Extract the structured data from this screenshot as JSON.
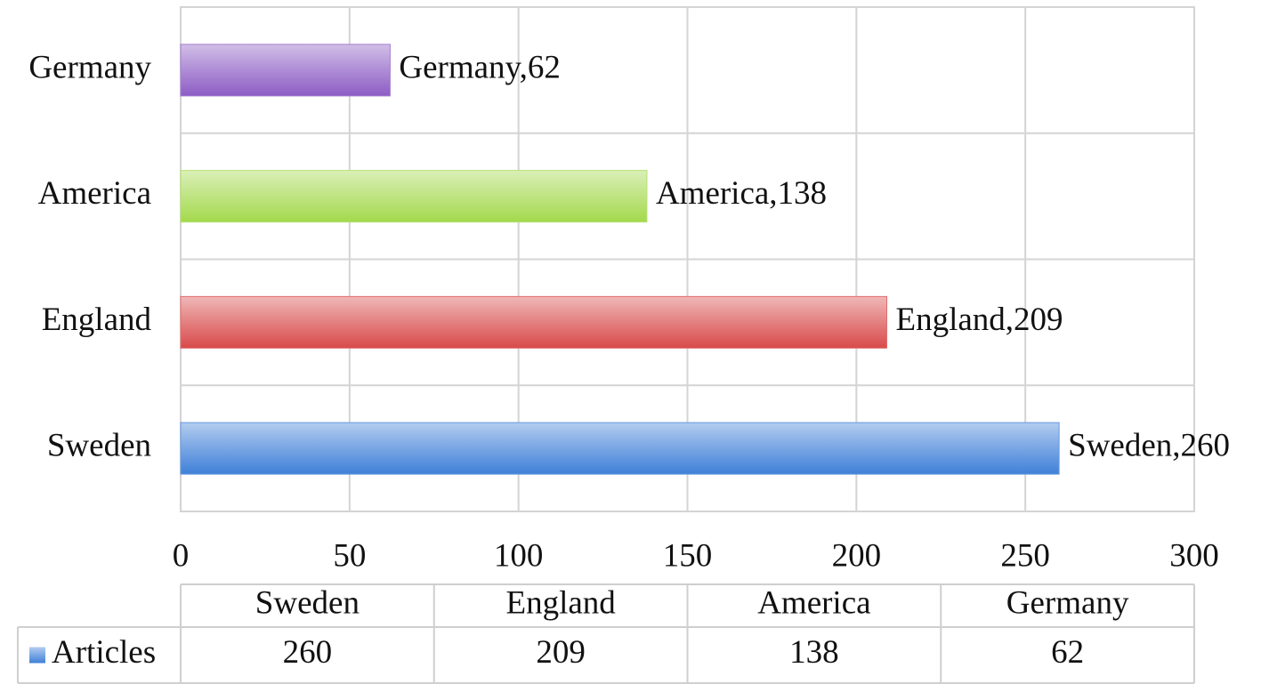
{
  "chart_data": {
    "type": "bar",
    "orientation": "horizontal",
    "categories": [
      "Sweden",
      "England",
      "America",
      "Germany"
    ],
    "series": [
      {
        "name": "Articles",
        "colors": [
          "#3f80d8",
          "#d94a4a",
          "#a3d94c",
          "#8c5cc4"
        ],
        "values": [
          260,
          209,
          138,
          62
        ],
        "value_labels": [
          "Sweden,260",
          "England,209",
          "America,138",
          "Germany,62"
        ]
      }
    ],
    "xlim": [
      0,
      300
    ],
    "xticks": [
      0,
      50,
      100,
      150,
      200,
      250,
      300
    ],
    "grid": true,
    "data_table": true
  }
}
